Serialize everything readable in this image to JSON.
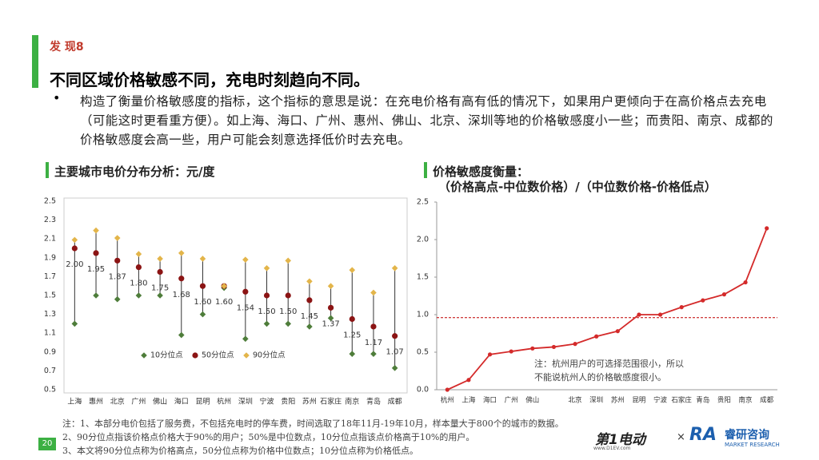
{
  "header": {
    "label": "发 现8",
    "title": "不同区域价格敏感不同，充电时刻趋向不同。",
    "bullet": "构造了衡量价格敏感度的指标，这个指标的意思是说：在充电价格有高有低的情况下，如果用户更倾向于在高价格点去充电（可能这时更看重方便）。如上海、海口、广州、惠州、佛山、北京、深圳等地的价格敏感度小一些；而贵阳、南京、成都的价格敏感度会高一些，用户可能会刻意选择低价时去充电。"
  },
  "chart_data": [
    {
      "type": "range",
      "title": "主要城市电价分布分析：元/度",
      "categories": [
        "上海",
        "惠州",
        "北京",
        "广州",
        "佛山",
        "海口",
        "昆明",
        "杭州",
        "深圳",
        "宁波",
        "贵阳",
        "苏州",
        "石家庄",
        "南京",
        "青岛",
        "成都"
      ],
      "series": [
        {
          "name": "10分位点",
          "color": "#4e7d3a",
          "marker": "diamond",
          "values": [
            1.2,
            1.5,
            1.46,
            1.5,
            1.5,
            1.08,
            1.3,
            1.58,
            1.04,
            1.2,
            1.2,
            1.17,
            1.26,
            0.88,
            0.88,
            0.73
          ]
        },
        {
          "name": "50分位点",
          "color": "#8b1414",
          "marker": "circle",
          "values": [
            2.0,
            1.95,
            1.87,
            1.8,
            1.75,
            1.68,
            1.6,
            1.6,
            1.54,
            1.5,
            1.5,
            1.45,
            1.37,
            1.25,
            1.17,
            1.07
          ],
          "value_labels": [
            "2.00",
            "1.95",
            "1.87",
            "1.80",
            "1.75",
            "1.68",
            "1.60",
            "1.60",
            "1.54",
            "1.50",
            "1.50",
            "1.45",
            "1.37",
            "1.25",
            "1.17",
            "1.07"
          ]
        },
        {
          "name": "90分位点",
          "color": "#e3b54a",
          "marker": "diamond",
          "values": [
            2.09,
            2.19,
            2.11,
            1.94,
            1.89,
            1.95,
            1.89,
            1.6,
            1.88,
            1.79,
            1.87,
            1.65,
            1.6,
            1.77,
            1.53,
            1.79
          ]
        }
      ],
      "ylim": [
        0.5,
        2.5
      ],
      "yticks": [
        0.5,
        0.7,
        0.9,
        1.1,
        1.3,
        1.5,
        1.7,
        1.9,
        2.1,
        2.3,
        2.5
      ],
      "grid": false,
      "legend": "bottom"
    },
    {
      "type": "line",
      "title": [
        "价格敏感度衡量：",
        "（价格高点-中位数价格）/（中位数价格-价格低点）"
      ],
      "categories": [
        "杭州",
        "上海",
        "海口",
        "广州",
        "佛山",
        null,
        "北京",
        "深圳",
        "苏州",
        "昆明",
        "宁波",
        "石家庄",
        "青岛",
        "贵阳",
        "南京",
        "成都"
      ],
      "values": [
        0,
        0.13,
        0.47,
        0.51,
        0.55,
        0.57,
        0.61,
        0.71,
        0.78,
        1.0,
        1.0,
        1.1,
        1.19,
        1.27,
        1.43,
        2.15
      ],
      "color": "#d42a2a",
      "ylim": [
        0,
        2.5
      ],
      "yticks": [
        {
          "value": 0,
          "label": "0.0"
        },
        0.5,
        {
          "value": 1,
          "label": "1.0"
        },
        1.5,
        {
          "value": 2,
          "label": "2.0"
        },
        2.5
      ],
      "grid": false,
      "reference_line": {
        "value": 0.96,
        "color": "#c00000",
        "style": "dashed"
      },
      "annotation": [
        "注：杭州用户的可选择范围很小，所以",
        "不能说杭州人的价格敏感度很小。"
      ]
    }
  ],
  "notes": [
    "注：1、本部分电价包括了服务费，不包括充电时的停车费，时间选取了18年11月-19年10月，样本量大于800个的城市的数据。",
    "2、90分位点指该价格点价格大于90%的用户；50%是中位数点，10分位点指该点价格高于10%的用户。",
    "3、本文将90分位点称为价格高点，50分位点称为价格中位数点；10分位点称为价格低点。"
  ],
  "page_number": "20",
  "logos": {
    "first": "第1电动",
    "first_url": "www.D1EV.com",
    "times": "×",
    "second_mark": "RA",
    "second": "睿研咨询",
    "second_sub": "MARKET RESEARCH"
  }
}
